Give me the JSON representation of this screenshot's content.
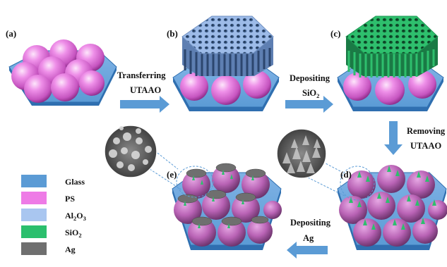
{
  "panels": {
    "a": "(a)",
    "b": "(b)",
    "c": "(c)",
    "d": "(d)",
    "e": "(e)"
  },
  "steps": {
    "transfer": {
      "line1": "Transferring",
      "line2": "UTAAO"
    },
    "deposit_sio2": {
      "line1": "Depositing",
      "line2_main": "SiO",
      "line2_sub": "2"
    },
    "remove": {
      "line1": "Removing",
      "line2": "UTAAO"
    },
    "deposit_ag": {
      "line1": "Depositing",
      "line2": "Ag"
    }
  },
  "legend": [
    {
      "key": "glass",
      "label": "Glass",
      "color": "#5b9bd5"
    },
    {
      "key": "ps",
      "label": "PS",
      "color": "#ee7be6"
    },
    {
      "key": "al2o3",
      "label_main": "Al",
      "label_sub1": "2",
      "label_mid": "O",
      "label_sub2": "3",
      "color": "#a9c6f0"
    },
    {
      "key": "sio2",
      "label": "SiO",
      "label_sub": "2",
      "color": "#2bbf6d"
    },
    {
      "key": "ag",
      "label": "Ag",
      "color": "#6f6f6f"
    }
  ],
  "colors": {
    "glass": "#5b9bd5",
    "glass_dark": "#2f6fb0",
    "ps": "#e27fdc",
    "al2o3": "#9dbbe8",
    "sio2": "#2ebf6d",
    "ag": "#707070",
    "arrow": "#5b9bd5",
    "sem_bg": "#555555"
  }
}
